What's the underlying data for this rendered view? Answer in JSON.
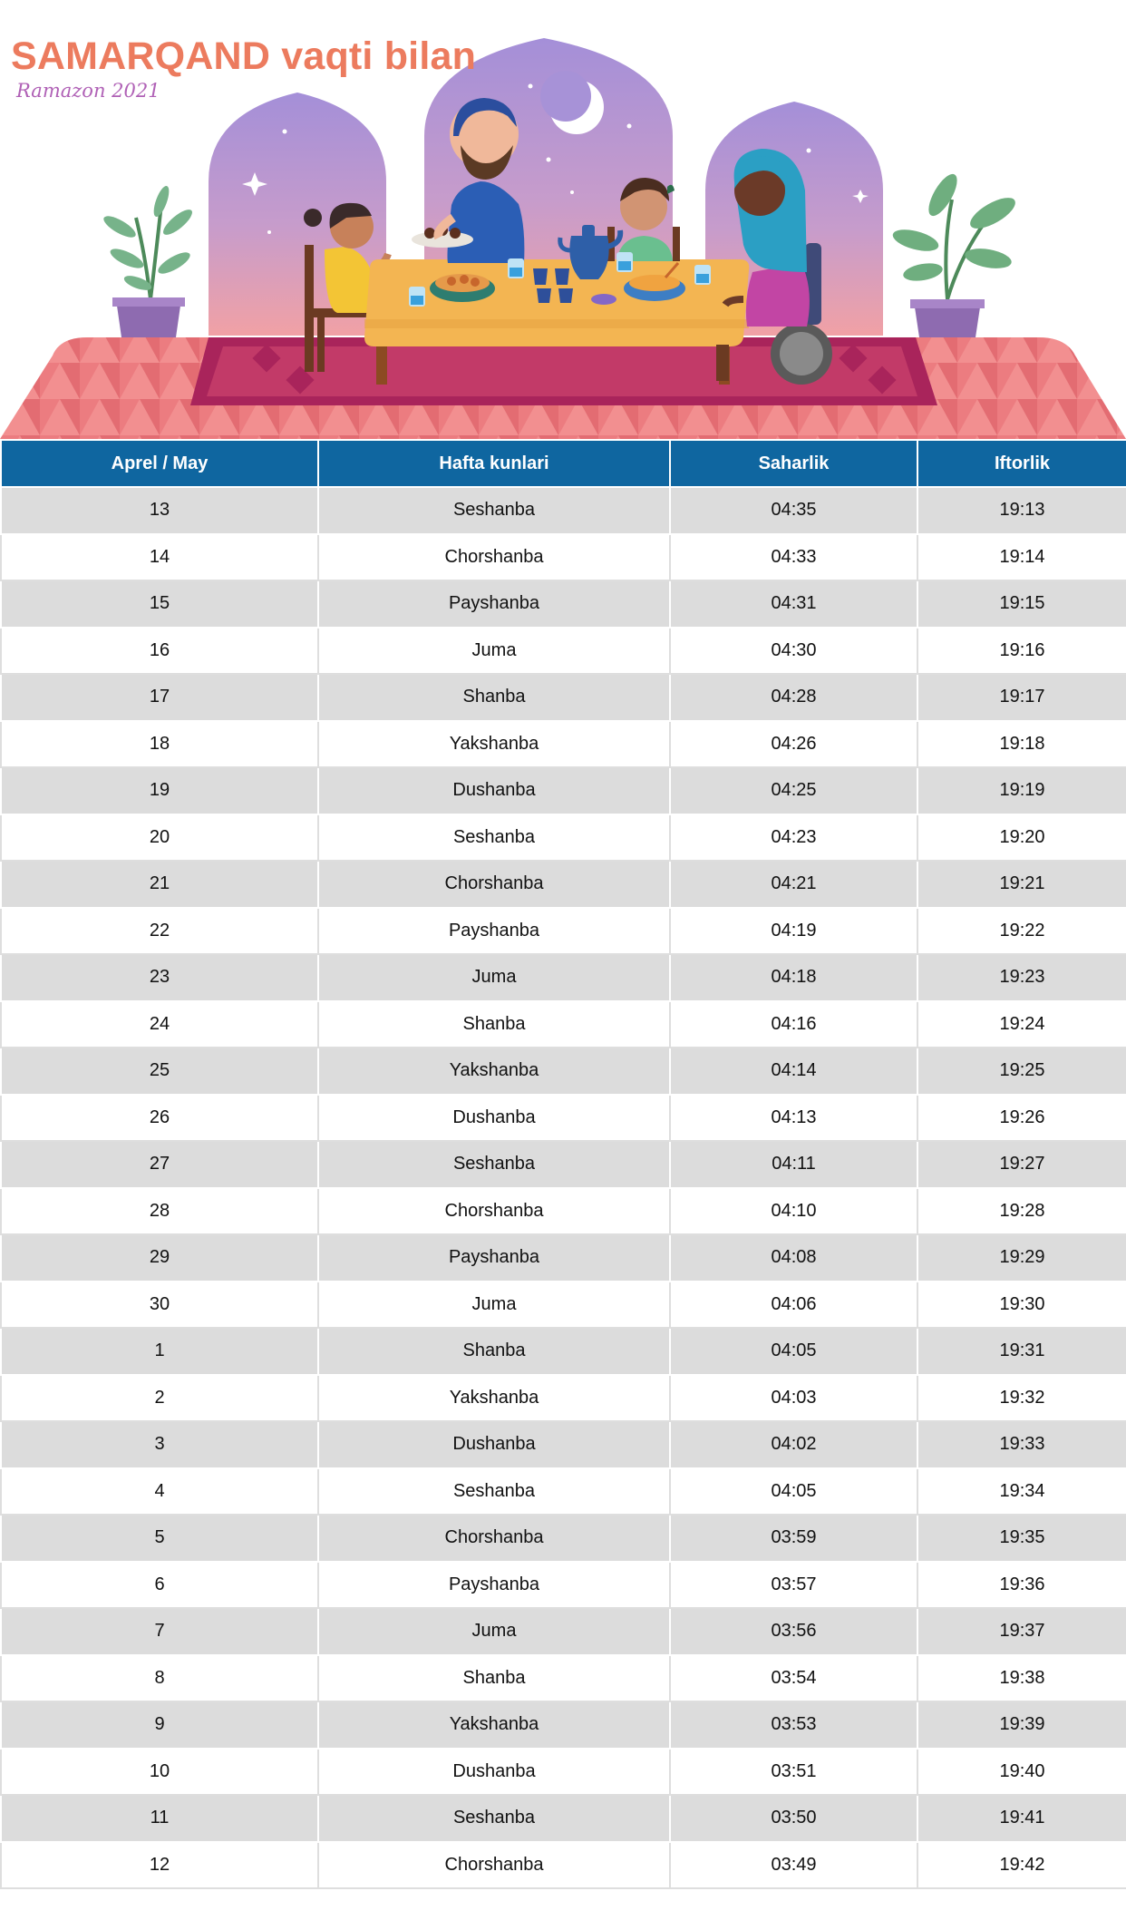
{
  "header": {
    "title": "SAMARQAND vaqti bilan",
    "subtitle": "Ramazon 2021"
  },
  "colors": {
    "title": "#ec7b5e",
    "subtitle": "#b061b6",
    "table_header": "#0f66a0",
    "row_alt": "#dcdcdc",
    "sky_top": "#a48fd8",
    "sky_bottom": "#f1a1a5",
    "rug": "#e97478",
    "table_top": "#f3b552"
  },
  "illustration": {
    "icons": [
      "crescent-moon-icon",
      "star-icon",
      "potted-plant-icon",
      "family-iftar-illustration"
    ]
  },
  "table": {
    "columns": [
      "Aprel / May",
      "Hafta kunlari",
      "Saharlik",
      "Iftorlik"
    ],
    "rows": [
      [
        "13",
        "Seshanba",
        "04:35",
        "19:13"
      ],
      [
        "14",
        "Chorshanba",
        "04:33",
        "19:14"
      ],
      [
        "15",
        "Payshanba",
        "04:31",
        "19:15"
      ],
      [
        "16",
        "Juma",
        "04:30",
        "19:16"
      ],
      [
        "17",
        "Shanba",
        "04:28",
        "19:17"
      ],
      [
        "18",
        "Yakshanba",
        "04:26",
        "19:18"
      ],
      [
        "19",
        "Dushanba",
        "04:25",
        "19:19"
      ],
      [
        "20",
        "Seshanba",
        "04:23",
        "19:20"
      ],
      [
        "21",
        "Chorshanba",
        "04:21",
        "19:21"
      ],
      [
        "22",
        "Payshanba",
        "04:19",
        "19:22"
      ],
      [
        "23",
        "Juma",
        "04:18",
        "19:23"
      ],
      [
        "24",
        "Shanba",
        "04:16",
        "19:24"
      ],
      [
        "25",
        "Yakshanba",
        "04:14",
        "19:25"
      ],
      [
        "26",
        "Dushanba",
        "04:13",
        "19:26"
      ],
      [
        "27",
        "Seshanba",
        "04:11",
        "19:27"
      ],
      [
        "28",
        "Chorshanba",
        "04:10",
        "19:28"
      ],
      [
        "29",
        "Payshanba",
        "04:08",
        "19:29"
      ],
      [
        "30",
        "Juma",
        "04:06",
        "19:30"
      ],
      [
        "1",
        "Shanba",
        "04:05",
        "19:31"
      ],
      [
        "2",
        "Yakshanba",
        "04:03",
        "19:32"
      ],
      [
        "3",
        "Dushanba",
        "04:02",
        "19:33"
      ],
      [
        "4",
        "Seshanba",
        "04:05",
        "19:34"
      ],
      [
        "5",
        "Chorshanba",
        "03:59",
        "19:35"
      ],
      [
        "6",
        "Payshanba",
        "03:57",
        "19:36"
      ],
      [
        "7",
        "Juma",
        "03:56",
        "19:37"
      ],
      [
        "8",
        "Shanba",
        "03:54",
        "19:38"
      ],
      [
        "9",
        "Yakshanba",
        "03:53",
        "19:39"
      ],
      [
        "10",
        "Dushanba",
        "03:51",
        "19:40"
      ],
      [
        "11",
        "Seshanba",
        "03:50",
        "19:41"
      ],
      [
        "12",
        "Chorshanba",
        "03:49",
        "19:42"
      ]
    ]
  }
}
